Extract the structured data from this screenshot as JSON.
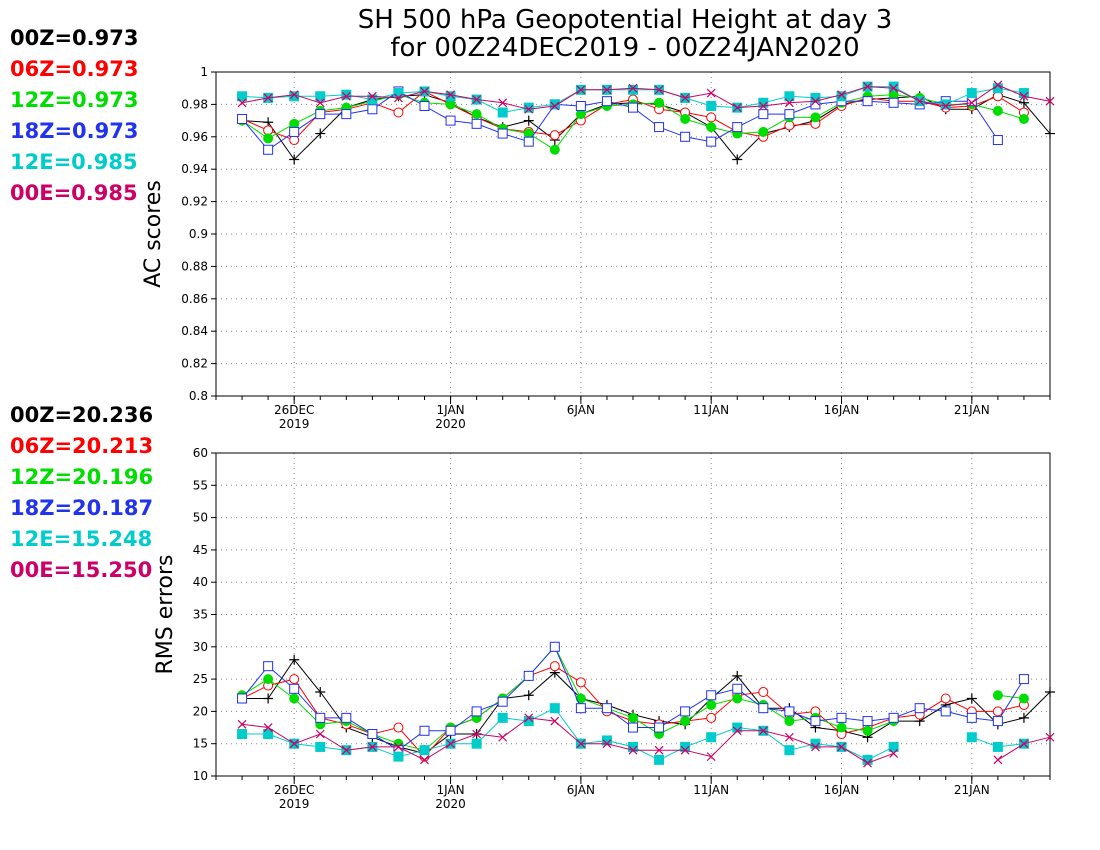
{
  "title": {
    "line1": "SH 500 hPa Geopotential Height at day 3",
    "line2": "for 00Z24DEC2019 - 00Z24JAN2020"
  },
  "colors": {
    "00Z": "#000000",
    "06Z": "#ff0000",
    "12Z": "#00dd00",
    "18Z": "#2233ee",
    "12E": "#00cccc",
    "00E": "#cc0066"
  },
  "legend_ac": [
    {
      "key": "00Z",
      "text": "00Z=0.973"
    },
    {
      "key": "06Z",
      "text": "06Z=0.973"
    },
    {
      "key": "12Z",
      "text": "12Z=0.973"
    },
    {
      "key": "18Z",
      "text": "18Z=0.973"
    },
    {
      "key": "12E",
      "text": "12E=0.985"
    },
    {
      "key": "00E",
      "text": "00E=0.985"
    }
  ],
  "legend_rms": [
    {
      "key": "00Z",
      "text": "00Z=20.236"
    },
    {
      "key": "06Z",
      "text": "06Z=20.213"
    },
    {
      "key": "12Z",
      "text": "12Z=20.196"
    },
    {
      "key": "18Z",
      "text": "18Z=20.187"
    },
    {
      "key": "12E",
      "text": "12E=15.248"
    },
    {
      "key": "00E",
      "text": "00E=15.250"
    }
  ],
  "chart_data": [
    {
      "type": "line",
      "ylabel": "AC scores",
      "xlim": [
        "2019-12-23",
        "2020-01-24"
      ],
      "ylim": [
        0.8,
        1.0
      ],
      "yticks": [
        0.8,
        0.82,
        0.84,
        0.86,
        0.88,
        0.9,
        0.92,
        0.94,
        0.96,
        0.98,
        1
      ],
      "xticks": [
        {
          "date": "2019-12-26",
          "label": "26DEC",
          "sublabel": "2019"
        },
        {
          "date": "2020-01-01",
          "label": "1JAN",
          "sublabel": "2020"
        },
        {
          "date": "2020-01-06",
          "label": "6JAN",
          "sublabel": ""
        },
        {
          "date": "2020-01-11",
          "label": "11JAN",
          "sublabel": ""
        },
        {
          "date": "2020-01-16",
          "label": "16JAN",
          "sublabel": ""
        },
        {
          "date": "2020-01-21",
          "label": "21JAN",
          "sublabel": ""
        }
      ],
      "grid": true,
      "x": [
        "2019-12-24",
        "2019-12-25",
        "2019-12-26",
        "2019-12-27",
        "2019-12-28",
        "2019-12-29",
        "2019-12-30",
        "2019-12-31",
        "2020-01-01",
        "2020-01-02",
        "2020-01-03",
        "2020-01-04",
        "2020-01-05",
        "2020-01-06",
        "2020-01-07",
        "2020-01-08",
        "2020-01-09",
        "2020-01-10",
        "2020-01-11",
        "2020-01-12",
        "2020-01-13",
        "2020-01-14",
        "2020-01-15",
        "2020-01-16",
        "2020-01-17",
        "2020-01-18",
        "2020-01-19",
        "2020-01-20",
        "2020-01-21",
        "2020-01-22",
        "2020-01-23",
        "2020-01-24"
      ],
      "series": [
        {
          "key": "00Z",
          "marker": "plus",
          "values": [
            0.97,
            0.969,
            0.946,
            0.962,
            0.978,
            0.983,
            0.985,
            0.986,
            0.981,
            0.972,
            0.966,
            0.97,
            0.958,
            0.974,
            0.98,
            0.981,
            0.98,
            0.975,
            0.966,
            0.946,
            0.962,
            0.966,
            0.97,
            0.98,
            0.983,
            0.984,
            0.985,
            0.977,
            0.977,
            0.986,
            0.981,
            0.962
          ]
        },
        {
          "key": "06Z",
          "marker": "circle",
          "values": [
            0.971,
            0.964,
            0.958,
            0.975,
            0.977,
            0.981,
            0.975,
            0.988,
            0.98,
            0.972,
            0.965,
            0.963,
            0.961,
            0.97,
            0.98,
            0.983,
            0.977,
            0.975,
            0.972,
            0.963,
            0.96,
            0.967,
            0.968,
            0.979,
            0.984,
            0.982,
            0.982,
            0.978,
            0.979,
            0.985,
            0.975,
            null
          ]
        },
        {
          "key": "12Z",
          "marker": "dot",
          "values": [
            0.97,
            0.959,
            0.968,
            0.976,
            0.978,
            0.982,
            0.986,
            0.981,
            0.98,
            0.974,
            0.965,
            0.962,
            0.952,
            0.974,
            0.979,
            0.98,
            0.981,
            0.971,
            0.966,
            0.962,
            0.963,
            0.972,
            0.972,
            0.981,
            0.985,
            0.986,
            0.984,
            0.98,
            0.98,
            0.976,
            0.971,
            null
          ]
        },
        {
          "key": "18Z",
          "marker": "square",
          "values": [
            0.971,
            0.952,
            0.963,
            0.974,
            0.974,
            0.977,
            0.988,
            0.979,
            0.97,
            0.968,
            0.962,
            0.957,
            0.98,
            0.979,
            0.982,
            0.978,
            0.966,
            0.96,
            0.957,
            0.966,
            0.974,
            0.974,
            0.98,
            0.982,
            0.982,
            0.981,
            0.98,
            0.982,
            0.982,
            0.958,
            null,
            null
          ]
        },
        {
          "key": "12E",
          "marker": "filledsquare",
          "values": [
            0.985,
            0.984,
            0.985,
            0.985,
            0.986,
            0.983,
            0.987,
            0.988,
            0.985,
            0.983,
            0.975,
            0.978,
            0.98,
            0.989,
            0.989,
            0.989,
            0.989,
            0.984,
            0.979,
            0.978,
            0.981,
            0.985,
            0.984,
            0.985,
            0.991,
            0.991,
            0.982,
            0.98,
            0.987,
            0.99,
            0.987,
            null
          ]
        },
        {
          "key": "00E",
          "marker": "x",
          "values": [
            0.981,
            0.984,
            0.986,
            0.981,
            0.985,
            0.985,
            0.984,
            0.988,
            0.986,
            0.983,
            0.981,
            0.977,
            0.979,
            0.989,
            0.989,
            0.99,
            0.989,
            0.984,
            0.987,
            0.978,
            0.979,
            0.981,
            0.982,
            0.986,
            0.991,
            0.99,
            0.982,
            0.979,
            0.981,
            0.992,
            0.985,
            0.982
          ]
        }
      ]
    },
    {
      "type": "line",
      "ylabel": "RMS errors",
      "xlim": [
        "2019-12-23",
        "2020-01-24"
      ],
      "ylim": [
        10,
        60
      ],
      "yticks": [
        10,
        15,
        20,
        25,
        30,
        35,
        40,
        45,
        50,
        55,
        60
      ],
      "xticks": [
        {
          "date": "2019-12-26",
          "label": "26DEC",
          "sublabel": "2019"
        },
        {
          "date": "2020-01-01",
          "label": "1JAN",
          "sublabel": "2020"
        },
        {
          "date": "2020-01-06",
          "label": "6JAN",
          "sublabel": ""
        },
        {
          "date": "2020-01-11",
          "label": "11JAN",
          "sublabel": ""
        },
        {
          "date": "2020-01-16",
          "label": "16JAN",
          "sublabel": ""
        },
        {
          "date": "2020-01-21",
          "label": "21JAN",
          "sublabel": ""
        }
      ],
      "grid": true,
      "x": [
        "2019-12-24",
        "2019-12-25",
        "2019-12-26",
        "2019-12-27",
        "2019-12-28",
        "2019-12-29",
        "2019-12-30",
        "2019-12-31",
        "2020-01-01",
        "2020-01-02",
        "2020-01-03",
        "2020-01-04",
        "2020-01-05",
        "2020-01-06",
        "2020-01-07",
        "2020-01-08",
        "2020-01-09",
        "2020-01-10",
        "2020-01-11",
        "2020-01-12",
        "2020-01-13",
        "2020-01-14",
        "2020-01-15",
        "2020-01-16",
        "2020-01-17",
        "2020-01-18",
        "2020-01-19",
        "2020-01-20",
        "2020-01-21",
        "2020-01-22",
        "2020-01-23",
        "2020-01-24"
      ],
      "series": [
        {
          "key": "00Z",
          "marker": "plus",
          "values": [
            22,
            22,
            28,
            23,
            17.5,
            16,
            14.5,
            13.5,
            16.5,
            16.5,
            22,
            22.5,
            26,
            22,
            21,
            19.5,
            18.5,
            18,
            22,
            25.5,
            20.5,
            20.5,
            17.5,
            17,
            16,
            18.5,
            18.5,
            21,
            22,
            18,
            19,
            23
          ]
        },
        {
          "key": "06Z",
          "marker": "circle",
          "values": [
            22,
            24,
            25,
            19,
            18,
            16.5,
            17.5,
            13,
            17.5,
            19,
            22,
            25.5,
            27,
            24.5,
            20,
            18.5,
            18,
            18.5,
            19,
            22.5,
            23,
            19.5,
            20,
            16.5,
            17.5,
            19,
            19.5,
            22,
            20,
            20,
            21,
            null
          ]
        },
        {
          "key": "12Z",
          "marker": "dot",
          "values": [
            22.5,
            25,
            22,
            18,
            18.5,
            16.5,
            15,
            14,
            17.5,
            19,
            22,
            25.5,
            30,
            22,
            20.5,
            19,
            16.5,
            18.5,
            21,
            22,
            21,
            18.5,
            19,
            17.5,
            17,
            18.5,
            null,
            null,
            null,
            22.5,
            22,
            null
          ]
        },
        {
          "key": "18Z",
          "marker": "square",
          "values": [
            22,
            27,
            23.5,
            19,
            19,
            16.5,
            14,
            17,
            17,
            20,
            21.5,
            25.5,
            30,
            20.5,
            20.5,
            17.5,
            17.5,
            20,
            22.5,
            23.5,
            20.5,
            20,
            18.5,
            19,
            18.5,
            19,
            20.5,
            20,
            19,
            18.5,
            25,
            null
          ]
        },
        {
          "key": "12E",
          "marker": "filledsquare",
          "values": [
            16.5,
            16.5,
            15,
            14.5,
            14,
            14.5,
            13,
            14,
            15,
            15,
            19,
            18.5,
            20.5,
            15,
            15.5,
            14.5,
            12.5,
            14.5,
            16,
            17.5,
            17,
            14,
            15,
            14.5,
            12.5,
            14.5,
            null,
            null,
            16,
            14.5,
            15,
            null
          ]
        },
        {
          "key": "00E",
          "marker": "x",
          "values": [
            18,
            17.5,
            15,
            16.5,
            14,
            14.5,
            14.5,
            12.5,
            15,
            16.5,
            16,
            19,
            18.5,
            15,
            15,
            14,
            14,
            14,
            13,
            17,
            17,
            16,
            14.5,
            14.5,
            12,
            13.5,
            null,
            null,
            null,
            12.5,
            15,
            16
          ]
        }
      ]
    }
  ]
}
